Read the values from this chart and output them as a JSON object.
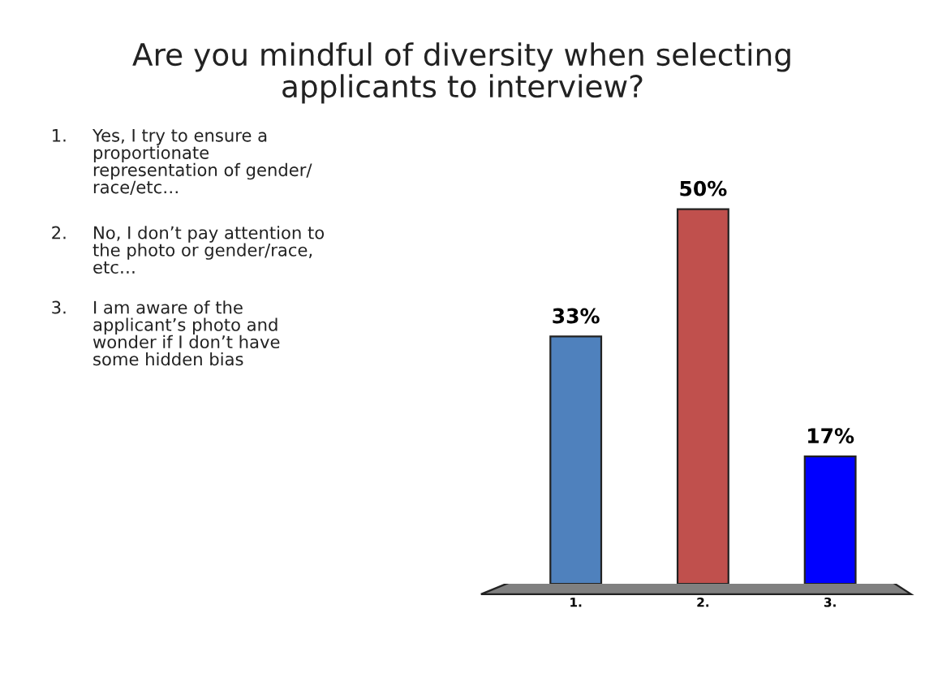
{
  "chart_data": {
    "type": "bar",
    "title": "Are you mindful of diversity when selecting\napplicants to interview?",
    "categories": [
      "1.",
      "2.",
      "3."
    ],
    "values": [
      33,
      50,
      17
    ],
    "colors": [
      "#4f81bd",
      "#c0504d",
      "#0000ff"
    ],
    "value_labels": [
      "33%",
      "50%",
      "17%"
    ],
    "grid": false,
    "annotations": [
      "1. Yes, I try to ensure a\nproportionate\nrepresentation of gender/\nrace/etc…",
      "2. No, I don’t pay attention to\nthe photo or gender/race,\netc…",
      "3. I am aware of the\napplicant’s photo and\nwonder if I don’t have\nsome hidden bias"
    ]
  }
}
